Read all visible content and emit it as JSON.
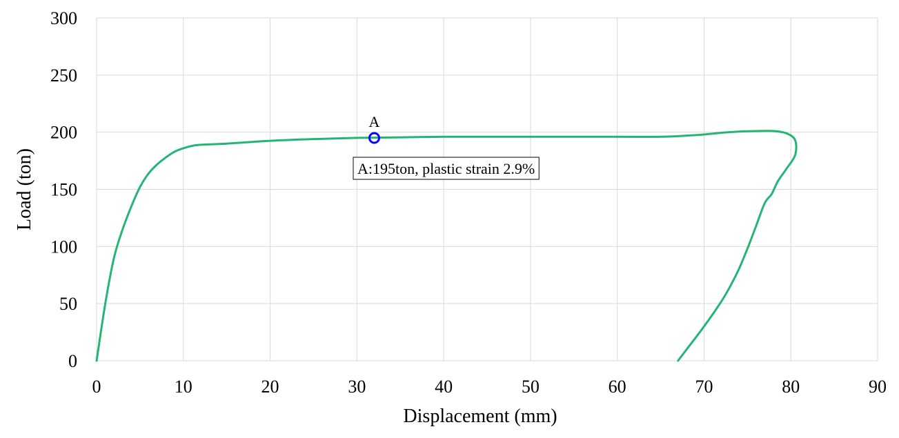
{
  "chart_data": {
    "type": "line",
    "title": "",
    "xlabel": "Displacement (mm)",
    "ylabel": "Load (ton)",
    "xlim": [
      0,
      90
    ],
    "ylim": [
      0,
      300
    ],
    "xticks": [
      "0",
      "10",
      "20",
      "30",
      "40",
      "50",
      "60",
      "70",
      "80",
      "90"
    ],
    "yticks": [
      "0",
      "50",
      "100",
      "150",
      "200",
      "250",
      "300"
    ],
    "grid": true,
    "legend": "none",
    "series": [
      {
        "color": "#22b573",
        "x": [
          0,
          1,
          2,
          3,
          4,
          5,
          6,
          7,
          8,
          9,
          10,
          11,
          12,
          15,
          20,
          25,
          30,
          35,
          40,
          45,
          50,
          55,
          60,
          65,
          68,
          70,
          72,
          74,
          76,
          78,
          79.5,
          80.5,
          80.5,
          79.5,
          78.5,
          77.8,
          77,
          76,
          75,
          74,
          73,
          72,
          70,
          68,
          67
        ],
        "y": [
          0,
          50,
          90,
          115,
          135,
          152,
          164,
          172,
          178,
          183,
          186,
          188,
          189,
          190,
          192.5,
          194,
          195,
          195.5,
          196,
          196,
          196,
          196,
          196,
          196,
          197,
          198,
          199.5,
          200.5,
          201,
          201,
          199,
          193,
          180,
          168,
          157,
          146,
          138,
          118,
          98,
          80,
          65,
          52,
          30,
          10,
          0
        ]
      }
    ],
    "annotations": [
      {
        "marker_label": "A",
        "x": 32,
        "y": 195,
        "marker_color": "#0000ff",
        "text": "A:195ton, plastic strain 2.9%"
      }
    ]
  }
}
